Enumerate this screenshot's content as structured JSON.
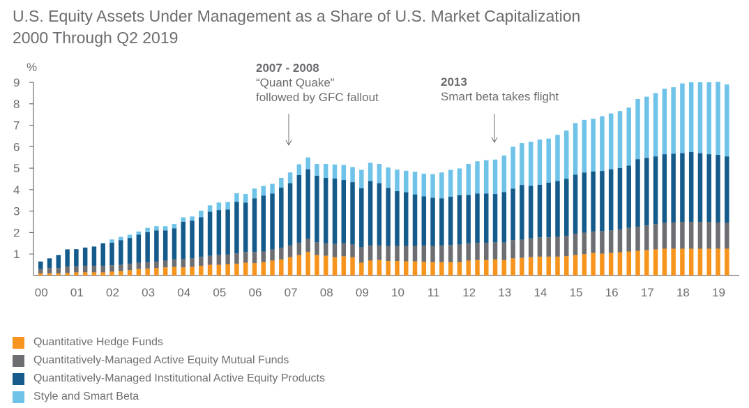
{
  "chart_data": {
    "type": "bar",
    "stacked": true,
    "title": "U.S. Equity Assets Under Management as a Share of U.S. Market Capitalization",
    "subtitle": "2000 Through Q2 2019",
    "ylabel": "%",
    "xlabel": "",
    "ylim": [
      0,
      9
    ],
    "yticks": [
      "1",
      "2",
      "3",
      "4",
      "5",
      "6",
      "7",
      "8",
      "9"
    ],
    "xtick_labels": [
      "00",
      "01",
      "02",
      "03",
      "04",
      "05",
      "06",
      "07",
      "08",
      "09",
      "10",
      "11",
      "12",
      "13",
      "14",
      "15",
      "16",
      "17",
      "18",
      "19"
    ],
    "period": "quarterly, 2000 Q1 through 2019 Q2",
    "annotations": [
      {
        "title": "2007 - 2008",
        "lines": [
          "“Quant Quake”",
          "followed by GFC fallout"
        ],
        "at_quarter_index": 28
      },
      {
        "title": "2013",
        "lines": [
          "Smart beta takes flight"
        ],
        "at_quarter_index": 51
      }
    ],
    "legend_position": "bottom-left",
    "series": [
      {
        "name": "Quantitative Hedge Funds",
        "color": "#f7941d",
        "values": [
          0.1,
          0.1,
          0.1,
          0.12,
          0.15,
          0.15,
          0.15,
          0.15,
          0.18,
          0.2,
          0.25,
          0.3,
          0.32,
          0.35,
          0.38,
          0.4,
          0.38,
          0.4,
          0.45,
          0.5,
          0.5,
          0.52,
          0.55,
          0.6,
          0.58,
          0.62,
          0.7,
          0.75,
          0.85,
          0.95,
          1.1,
          0.95,
          0.92,
          0.85,
          0.9,
          0.85,
          0.6,
          0.7,
          0.72,
          0.68,
          0.68,
          0.66,
          0.66,
          0.64,
          0.62,
          0.62,
          0.62,
          0.62,
          0.7,
          0.72,
          0.72,
          0.75,
          0.72,
          0.8,
          0.82,
          0.85,
          0.88,
          0.88,
          0.88,
          0.9,
          0.95,
          1.0,
          1.05,
          1.02,
          1.05,
          1.08,
          1.12,
          1.15,
          1.18,
          1.22,
          1.25,
          1.25,
          1.25,
          1.25,
          1.25,
          1.25,
          1.25,
          1.25
        ]
      },
      {
        "name": "Quantitatively-Managed Active Equity Mutual Funds",
        "color": "#6d6e71",
        "values": [
          0.2,
          0.25,
          0.25,
          0.3,
          0.28,
          0.3,
          0.3,
          0.3,
          0.3,
          0.3,
          0.3,
          0.3,
          0.3,
          0.3,
          0.32,
          0.35,
          0.38,
          0.4,
          0.42,
          0.42,
          0.45,
          0.45,
          0.48,
          0.5,
          0.52,
          0.5,
          0.52,
          0.55,
          0.55,
          0.58,
          0.6,
          0.6,
          0.58,
          0.62,
          0.6,
          0.6,
          0.72,
          0.7,
          0.68,
          0.7,
          0.7,
          0.72,
          0.72,
          0.75,
          0.75,
          0.78,
          0.8,
          0.82,
          0.8,
          0.8,
          0.8,
          0.8,
          0.82,
          0.85,
          0.85,
          0.88,
          0.9,
          0.9,
          0.92,
          0.95,
          1.0,
          1.0,
          1.0,
          1.05,
          1.05,
          1.08,
          1.1,
          1.12,
          1.15,
          1.18,
          1.2,
          1.22,
          1.25,
          1.25,
          1.25,
          1.25,
          1.22,
          1.2
        ]
      },
      {
        "name": "Quantitatively-Managed Institutional Active Equity Products",
        "color": "#145b8c",
        "values": [
          0.35,
          0.45,
          0.6,
          0.8,
          0.8,
          0.85,
          0.9,
          1.05,
          1.05,
          1.15,
          1.2,
          1.3,
          1.4,
          1.45,
          1.4,
          1.45,
          1.75,
          1.75,
          1.85,
          2.05,
          2.1,
          2.1,
          2.4,
          2.3,
          2.5,
          2.6,
          2.6,
          2.8,
          2.9,
          3.15,
          3.25,
          3.1,
          3.05,
          3.05,
          2.95,
          2.9,
          2.75,
          3.0,
          2.9,
          2.7,
          2.55,
          2.5,
          2.4,
          2.3,
          2.25,
          2.2,
          2.25,
          2.3,
          2.25,
          2.3,
          2.3,
          2.25,
          2.35,
          2.4,
          2.55,
          2.45,
          2.45,
          2.55,
          2.6,
          2.65,
          2.75,
          2.8,
          2.8,
          2.8,
          2.85,
          2.85,
          2.9,
          3.15,
          3.15,
          3.15,
          3.2,
          3.2,
          3.2,
          3.25,
          3.2,
          3.15,
          3.15,
          3.1
        ]
      },
      {
        "name": "Style and Smart Beta",
        "color": "#6fc3e8",
        "values": [
          0.0,
          0.0,
          0.0,
          0.0,
          0.0,
          0.0,
          0.0,
          0.0,
          0.15,
          0.15,
          0.15,
          0.15,
          0.2,
          0.2,
          0.2,
          0.2,
          0.2,
          0.2,
          0.3,
          0.3,
          0.35,
          0.35,
          0.4,
          0.4,
          0.45,
          0.45,
          0.45,
          0.45,
          0.5,
          0.5,
          0.55,
          0.55,
          0.65,
          0.65,
          0.7,
          0.7,
          0.85,
          0.85,
          0.9,
          0.95,
          1.0,
          1.0,
          1.05,
          1.05,
          1.1,
          1.2,
          1.25,
          1.25,
          1.45,
          1.5,
          1.55,
          1.6,
          1.7,
          1.95,
          1.95,
          2.05,
          2.1,
          2.05,
          2.15,
          2.25,
          2.4,
          2.45,
          2.45,
          2.55,
          2.6,
          2.65,
          2.7,
          2.8,
          2.85,
          2.95,
          3.05,
          3.1,
          3.25,
          3.25,
          3.3,
          3.35,
          3.4,
          3.35
        ]
      }
    ]
  }
}
